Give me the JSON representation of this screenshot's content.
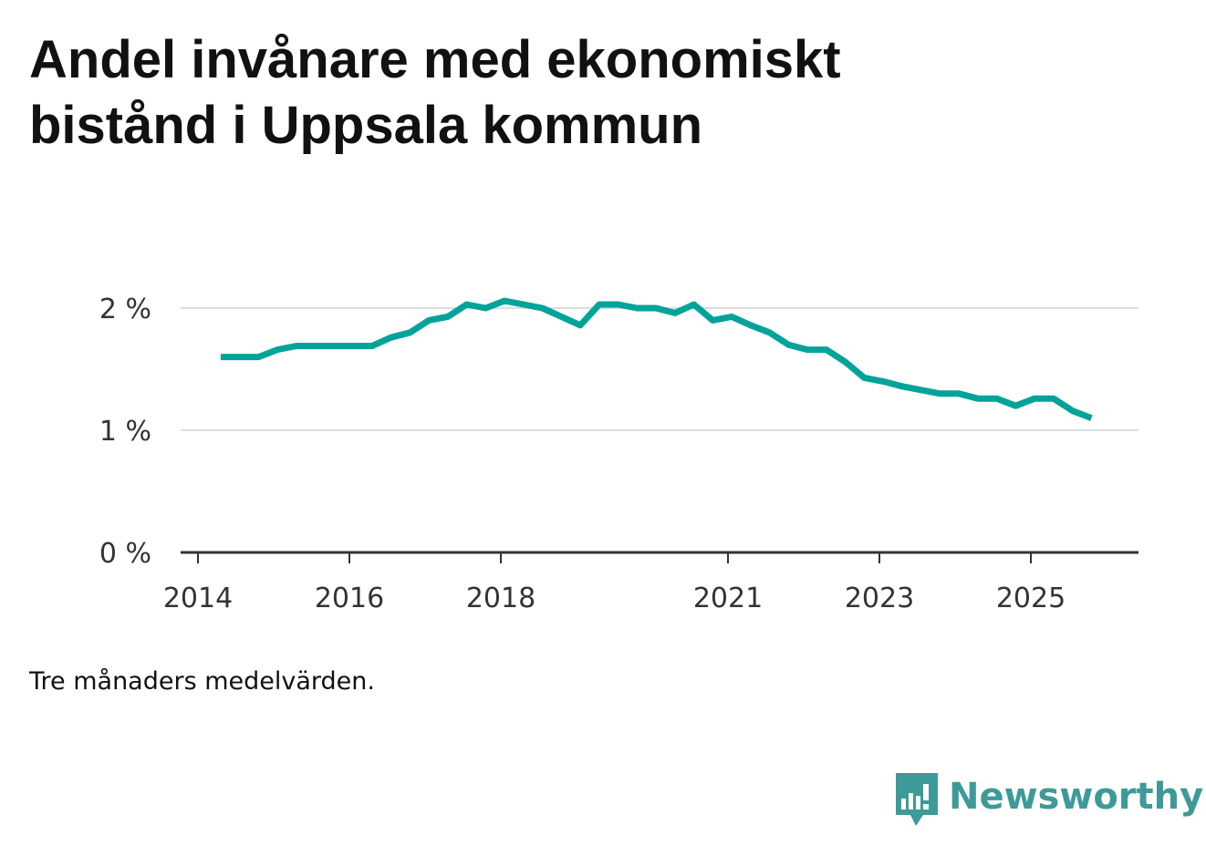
{
  "title_lines": [
    "Andel invånare med ekonomiskt",
    "bistånd i Uppsala kommun"
  ],
  "note": "Tre månaders medelvärden.",
  "brand": {
    "name": "Newsworthy",
    "icon": "bar-chart-speech-bubble-icon"
  },
  "colors": {
    "line": "#00a39a",
    "grid": "#dddddd",
    "axis": "#333333",
    "brand": "#3e9a98"
  },
  "chart_data": {
    "type": "line",
    "title": "Andel invånare med ekonomiskt bistånd i Uppsala kommun",
    "xlabel": "",
    "ylabel": "",
    "xlim": [
      2013.8,
      2026.5
    ],
    "ylim": [
      0,
      2.1
    ],
    "grid": true,
    "x_ticks": [
      {
        "value": 2014,
        "label": "2014"
      },
      {
        "value": 2016,
        "label": "2016"
      },
      {
        "value": 2018,
        "label": "2018"
      },
      {
        "value": 2021,
        "label": "2021"
      },
      {
        "value": 2023,
        "label": "2023"
      },
      {
        "value": 2025,
        "label": "2025"
      }
    ],
    "y_ticks": [
      {
        "value": 0,
        "label": "0 %"
      },
      {
        "value": 1,
        "label": "1 %"
      },
      {
        "value": 2,
        "label": "2 %"
      }
    ],
    "series": [
      {
        "name": "Andel invånare med ekonomiskt bistånd",
        "x": [
          2014.3,
          2014.55,
          2014.8,
          2015.05,
          2015.3,
          2015.55,
          2015.8,
          2016.05,
          2016.3,
          2016.55,
          2016.8,
          2017.05,
          2017.3,
          2017.55,
          2017.8,
          2018.05,
          2018.3,
          2018.55,
          2018.8,
          2019.05,
          2019.3,
          2019.55,
          2019.8,
          2020.05,
          2020.3,
          2020.55,
          2020.8,
          2021.05,
          2021.3,
          2021.55,
          2021.8,
          2022.05,
          2022.3,
          2022.55,
          2022.8,
          2023.05,
          2023.3,
          2023.55,
          2023.8,
          2024.05,
          2024.3,
          2024.55,
          2024.8,
          2025.05,
          2025.3,
          2025.55,
          2025.8
        ],
        "values": [
          1.6,
          1.6,
          1.6,
          1.66,
          1.69,
          1.69,
          1.69,
          1.69,
          1.69,
          1.76,
          1.8,
          1.9,
          1.93,
          2.03,
          2.0,
          2.06,
          2.03,
          2.0,
          1.93,
          1.86,
          2.03,
          2.03,
          2.0,
          2.0,
          1.96,
          2.03,
          1.9,
          1.93,
          1.86,
          1.8,
          1.7,
          1.66,
          1.66,
          1.56,
          1.43,
          1.4,
          1.36,
          1.33,
          1.3,
          1.3,
          1.26,
          1.26,
          1.2,
          1.26,
          1.26,
          1.16,
          1.1
        ]
      }
    ]
  }
}
